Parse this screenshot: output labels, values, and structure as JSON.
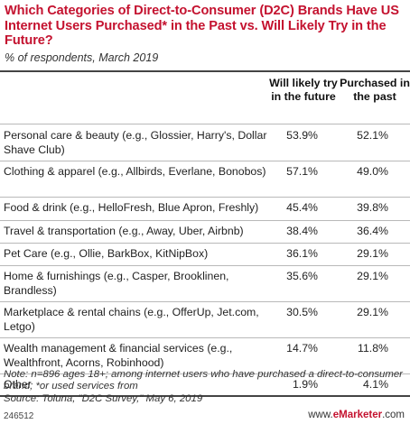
{
  "title": "Which Categories of Direct-to-Consumer (D2C) Brands Have US Internet Users Purchased* in the Past vs. Will Likely Try in the Future?",
  "subtitle": "% of respondents, March 2019",
  "chart_data": {
    "type": "table",
    "columns": [
      "Will likely try in the future",
      "Purchased in the past"
    ],
    "rows": [
      {
        "label": "Personal care & beauty (e.g., Glossier, Harry's, Dollar Shave Club)",
        "future": "53.9%",
        "past": "52.1%"
      },
      {
        "label": "Clothing & apparel (e.g., Allbirds, Everlane, Bonobos)",
        "future": "57.1%",
        "past": "49.0%"
      },
      {
        "label": "Food & drink (e.g., HelloFresh, Blue Apron, Freshly)",
        "future": "45.4%",
        "past": "39.8%"
      },
      {
        "label": "Travel & transportation (e.g., Away, Uber, Airbnb)",
        "future": "38.4%",
        "past": "36.4%"
      },
      {
        "label": "Pet Care (e.g., Ollie, BarkBox, KitNipBox)",
        "future": "36.1%",
        "past": "29.1%"
      },
      {
        "label": "Home & furnishings (e.g., Casper, Brooklinen, Brandless)",
        "future": "35.6%",
        "past": "29.1%"
      },
      {
        "label": "Marketplace & rental chains (e.g., OfferUp, Jet.com, Letgo)",
        "future": "30.5%",
        "past": "29.1%"
      },
      {
        "label": "Wealth management & financial services (e.g., Wealthfront, Acorns, Robinhood)",
        "future": "14.7%",
        "past": "11.8%"
      },
      {
        "label": "Other",
        "future": "1.9%",
        "past": "4.1%"
      }
    ]
  },
  "header": {
    "col1": "Will likely try in the future",
    "col2": "Purchased in the past"
  },
  "note": "Note: n=896 ages 18+; among internet users who have purchased a direct-to-consumer brand; *or used services from",
  "source": "Source: Toluna, \"D2C Survey,\" May 6, 2019",
  "footer": {
    "id": "246512",
    "brand_prefix": "www.",
    "brand_name": "eMarketer",
    "brand_suffix": ".com"
  },
  "colors": {
    "title": "#c4122f",
    "rule": "#444444",
    "separator": "#b9b9b9"
  }
}
